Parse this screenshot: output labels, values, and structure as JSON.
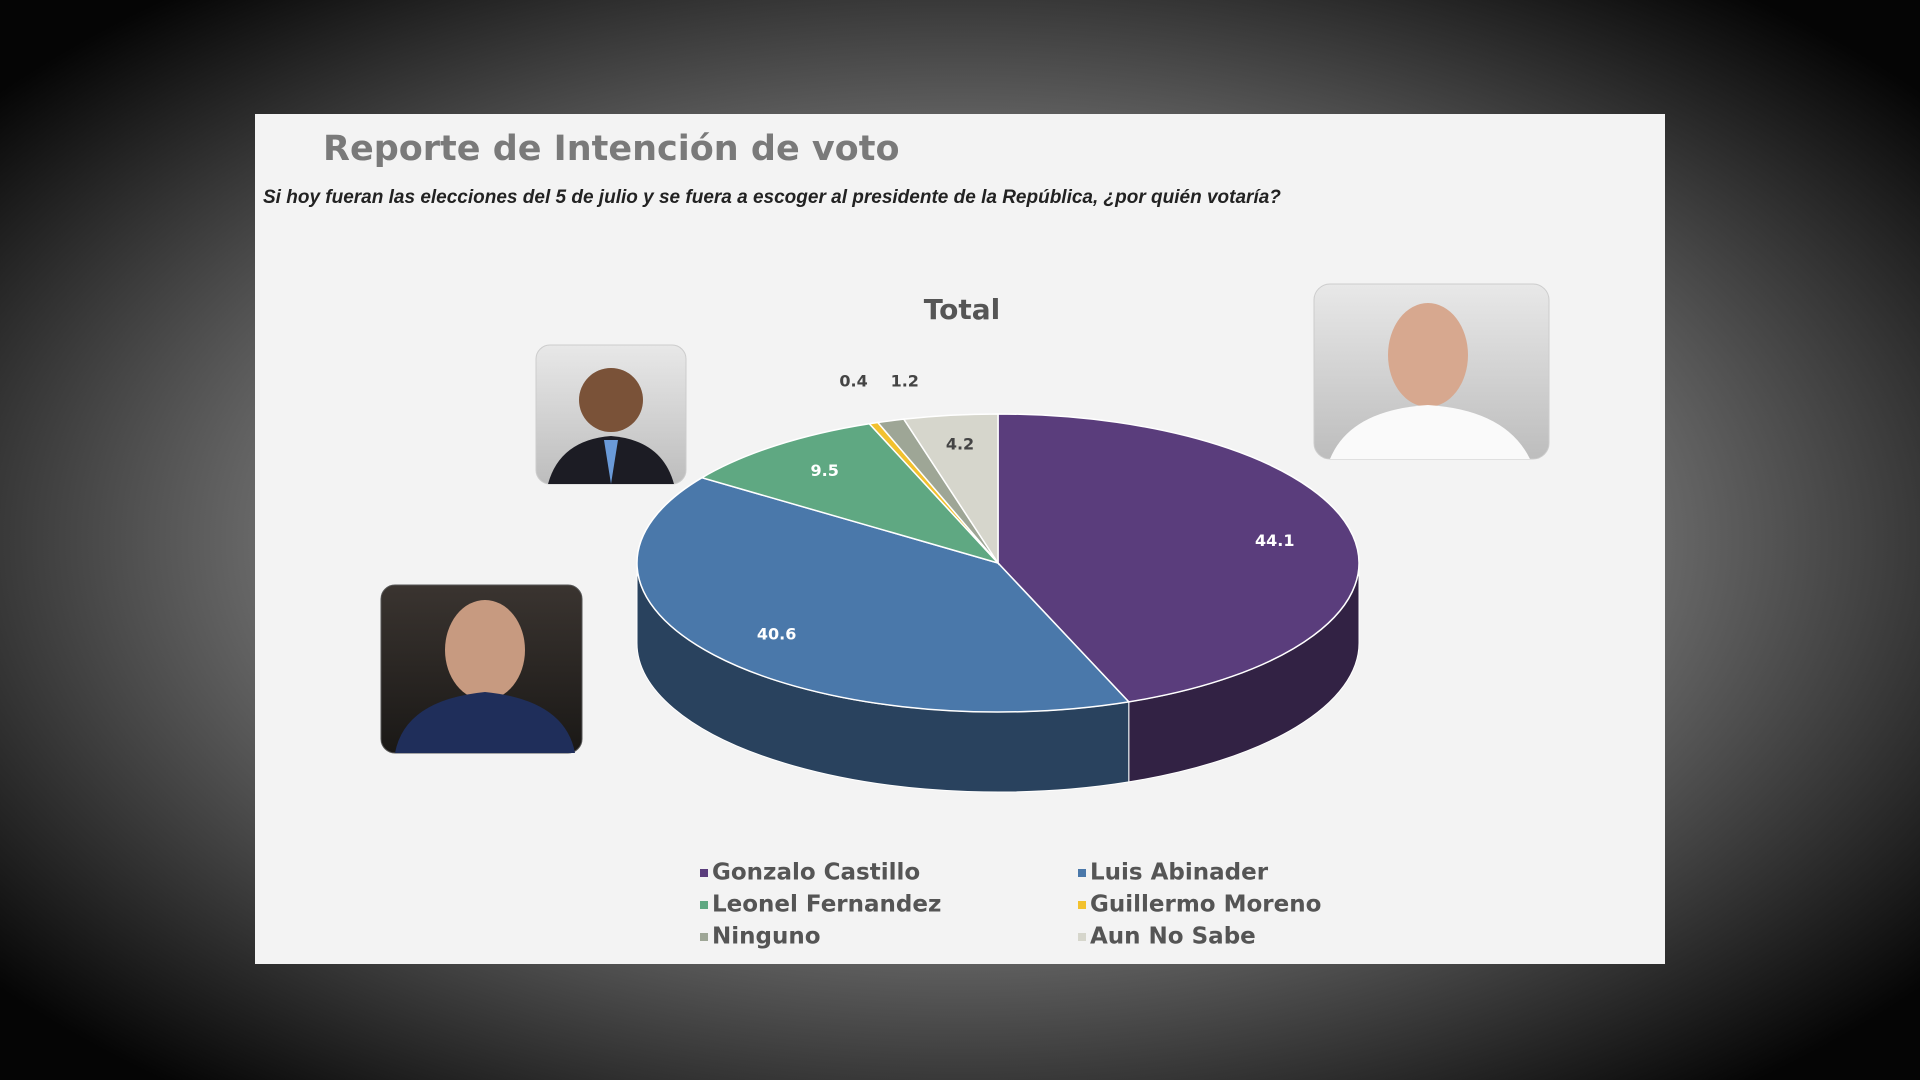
{
  "chart_data": {
    "type": "pie3d",
    "title": "Reporte de Intención de voto",
    "subtitle": "Si hoy fueran las elecciones del 5 de julio y se fuera a escoger al presidente de la República, ¿por quién votaría?",
    "chart_title": "Total",
    "categories": [
      "Gonzalo Castillo",
      "Luis Abinader",
      "Leonel Fernandez",
      "Guillermo Moreno",
      "Ninguno",
      "Aun No Sabe"
    ],
    "values": [
      44.1,
      40.6,
      9.5,
      0.4,
      1.2,
      4.2
    ],
    "colors": [
      "#5a3d7c",
      "#4a78aa",
      "#5fa882",
      "#f2c12e",
      "#9ea696",
      "#d6d6cc"
    ],
    "legend": "bottom"
  }
}
